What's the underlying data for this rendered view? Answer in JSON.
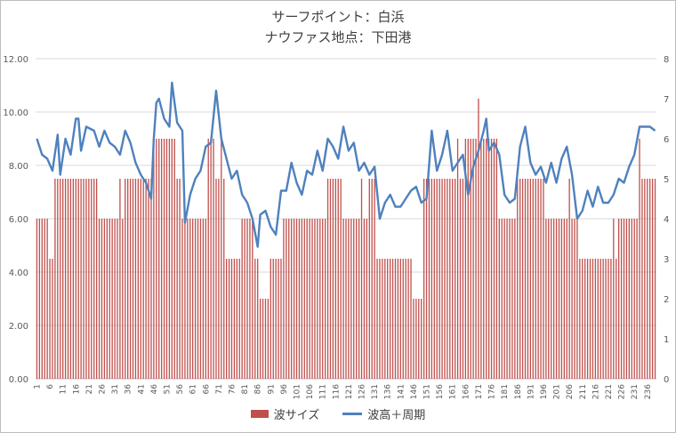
{
  "chart_data": {
    "type": "bar+line",
    "title": "サーフポイント：白浜",
    "subtitle": "ナウファス地点：下田港",
    "x_count": 239,
    "x_tick_start": 1,
    "x_tick_step": 5,
    "y_left": {
      "min": 0,
      "max": 12,
      "step": 2,
      "ticks": [
        "0.00",
        "2.00",
        "4.00",
        "6.00",
        "8.00",
        "10.00",
        "12.00"
      ]
    },
    "y_right": {
      "min": 0,
      "max": 8,
      "step": 1,
      "ticks": [
        "0",
        "1",
        "2",
        "3",
        "4",
        "5",
        "6",
        "7",
        "8"
      ]
    },
    "bar_segments": [
      [
        1,
        5,
        6.0
      ],
      [
        6,
        7,
        4.5
      ],
      [
        8,
        16,
        7.5
      ],
      [
        17,
        19,
        7.5
      ],
      [
        20,
        24,
        7.5
      ],
      [
        25,
        34,
        6.0
      ],
      [
        35,
        42,
        7.5
      ],
      [
        43,
        45,
        7.5
      ],
      [
        46,
        54,
        9.0
      ],
      [
        55,
        56,
        7.5
      ],
      [
        57,
        66,
        6.0
      ],
      [
        67,
        69,
        9.0
      ],
      [
        70,
        73,
        7.5
      ],
      [
        74,
        79,
        4.5
      ],
      [
        80,
        84,
        6.0
      ],
      [
        85,
        86,
        4.5
      ],
      [
        87,
        90,
        3.0
      ],
      [
        91,
        95,
        4.5
      ],
      [
        96,
        112,
        6.0
      ],
      [
        113,
        118,
        7.5
      ],
      [
        119,
        128,
        6.0
      ],
      [
        129,
        131,
        7.5
      ],
      [
        132,
        136,
        4.5
      ],
      [
        137,
        145,
        4.5
      ],
      [
        146,
        149,
        3.0
      ],
      [
        150,
        165,
        7.5
      ],
      [
        166,
        178,
        9.0
      ],
      [
        179,
        185,
        6.0
      ],
      [
        186,
        196,
        7.5
      ],
      [
        197,
        209,
        6.0
      ],
      [
        210,
        224,
        4.5
      ],
      [
        225,
        232,
        6.0
      ],
      [
        233,
        239,
        7.5
      ]
    ],
    "bar_overrides": [
      [
        3,
        6.0
      ],
      [
        7,
        4.5
      ],
      [
        33,
        7.5
      ],
      [
        72,
        9.0
      ],
      [
        126,
        7.5
      ],
      [
        163,
        9.0
      ],
      [
        171,
        10.5
      ],
      [
        174,
        9.0
      ],
      [
        206,
        7.5
      ],
      [
        223,
        6.0
      ],
      [
        233,
        9.0
      ]
    ],
    "line_points": [
      [
        1,
        6.0
      ],
      [
        3,
        5.6
      ],
      [
        5,
        5.5
      ],
      [
        7,
        5.2
      ],
      [
        9,
        6.1
      ],
      [
        10,
        5.1
      ],
      [
        12,
        6.0
      ],
      [
        14,
        5.6
      ],
      [
        16,
        6.5
      ],
      [
        17,
        6.5
      ],
      [
        18,
        5.7
      ],
      [
        20,
        6.3
      ],
      [
        23,
        6.2
      ],
      [
        25,
        5.8
      ],
      [
        27,
        6.2
      ],
      [
        29,
        5.9
      ],
      [
        31,
        5.8
      ],
      [
        33,
        5.6
      ],
      [
        35,
        6.2
      ],
      [
        37,
        5.9
      ],
      [
        39,
        5.4
      ],
      [
        41,
        5.1
      ],
      [
        43,
        4.9
      ],
      [
        45,
        4.5
      ],
      [
        46,
        6.0
      ],
      [
        47,
        6.9
      ],
      [
        48,
        7.0
      ],
      [
        50,
        6.5
      ],
      [
        52,
        6.3
      ],
      [
        53,
        7.4
      ],
      [
        55,
        6.4
      ],
      [
        57,
        6.2
      ],
      [
        58,
        3.9
      ],
      [
        60,
        4.6
      ],
      [
        62,
        5.0
      ],
      [
        64,
        5.2
      ],
      [
        66,
        5.8
      ],
      [
        68,
        5.9
      ],
      [
        70,
        7.2
      ],
      [
        72,
        6.0
      ],
      [
        74,
        5.5
      ],
      [
        76,
        5.0
      ],
      [
        78,
        5.2
      ],
      [
        80,
        4.6
      ],
      [
        82,
        4.4
      ],
      [
        84,
        4.0
      ],
      [
        86,
        3.3
      ],
      [
        87,
        4.1
      ],
      [
        89,
        4.2
      ],
      [
        91,
        3.8
      ],
      [
        93,
        3.6
      ],
      [
        95,
        4.7
      ],
      [
        97,
        4.7
      ],
      [
        99,
        5.4
      ],
      [
        101,
        4.9
      ],
      [
        103,
        4.6
      ],
      [
        105,
        5.2
      ],
      [
        107,
        5.1
      ],
      [
        109,
        5.7
      ],
      [
        111,
        5.2
      ],
      [
        113,
        6.0
      ],
      [
        115,
        5.8
      ],
      [
        117,
        5.5
      ],
      [
        119,
        6.3
      ],
      [
        121,
        5.7
      ],
      [
        123,
        5.9
      ],
      [
        125,
        5.2
      ],
      [
        127,
        5.4
      ],
      [
        129,
        5.1
      ],
      [
        131,
        5.3
      ],
      [
        133,
        4.0
      ],
      [
        135,
        4.4
      ],
      [
        137,
        4.6
      ],
      [
        139,
        4.3
      ],
      [
        141,
        4.3
      ],
      [
        143,
        4.5
      ],
      [
        145,
        4.7
      ],
      [
        147,
        4.8
      ],
      [
        149,
        4.4
      ],
      [
        151,
        4.5
      ],
      [
        153,
        6.2
      ],
      [
        155,
        5.2
      ],
      [
        157,
        5.6
      ],
      [
        159,
        6.2
      ],
      [
        161,
        5.2
      ],
      [
        163,
        5.4
      ],
      [
        165,
        5.6
      ],
      [
        167,
        4.6
      ],
      [
        169,
        5.3
      ],
      [
        171,
        5.7
      ],
      [
        173,
        6.2
      ],
      [
        174,
        6.5
      ],
      [
        175,
        5.7
      ],
      [
        177,
        5.9
      ],
      [
        179,
        5.6
      ],
      [
        181,
        4.6
      ],
      [
        183,
        4.4
      ],
      [
        185,
        4.5
      ],
      [
        187,
        5.8
      ],
      [
        189,
        6.3
      ],
      [
        191,
        5.4
      ],
      [
        193,
        5.1
      ],
      [
        195,
        5.3
      ],
      [
        197,
        4.9
      ],
      [
        199,
        5.4
      ],
      [
        201,
        4.9
      ],
      [
        203,
        5.5
      ],
      [
        205,
        5.8
      ],
      [
        207,
        5.1
      ],
      [
        209,
        4.0
      ],
      [
        211,
        4.2
      ],
      [
        213,
        4.7
      ],
      [
        215,
        4.3
      ],
      [
        217,
        4.8
      ],
      [
        219,
        4.4
      ],
      [
        221,
        4.4
      ],
      [
        223,
        4.6
      ],
      [
        225,
        5.0
      ],
      [
        227,
        4.9
      ],
      [
        229,
        5.3
      ],
      [
        231,
        5.6
      ],
      [
        233,
        6.3
      ],
      [
        235,
        6.3
      ],
      [
        237,
        6.3
      ],
      [
        239,
        6.2
      ]
    ],
    "series": [
      {
        "name": "波サイズ",
        "type": "bar",
        "axis": "left",
        "color": "#c0504d"
      },
      {
        "name": "波高＋周期",
        "type": "line",
        "axis": "right",
        "color": "#4f81bd"
      }
    ],
    "grid": true,
    "legend": "bottom"
  }
}
